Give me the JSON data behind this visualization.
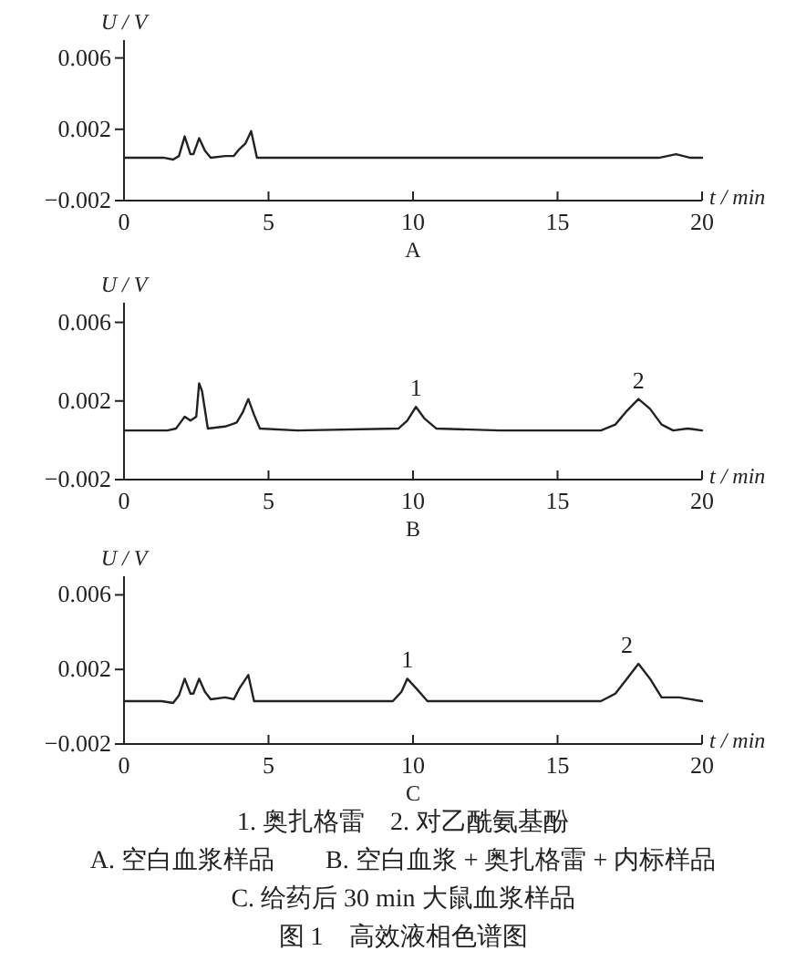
{
  "chart_data": [
    {
      "type": "line",
      "title": "A",
      "xlabel": "t / min",
      "ylabel": "U / V",
      "color": "#222222",
      "xlim": [
        0,
        20
      ],
      "ylim": [
        -0.002,
        0.007
      ],
      "xticks": [
        0,
        5,
        10,
        15,
        20
      ],
      "yticks": [
        -0.002,
        0.002,
        0.006
      ],
      "x": [
        0,
        1.4,
        1.7,
        1.9,
        2.1,
        2.3,
        2.4,
        2.6,
        2.8,
        3.0,
        3.5,
        3.8,
        4.0,
        4.2,
        4.4,
        4.6,
        5.0,
        6,
        10,
        12,
        15,
        18.5,
        19.1,
        19.6,
        20
      ],
      "values": [
        0.0004,
        0.0004,
        0.0003,
        0.0005,
        0.0016,
        0.0006,
        0.0006,
        0.0015,
        0.0008,
        0.0004,
        0.0005,
        0.0005,
        0.0009,
        0.0012,
        0.0019,
        0.0004,
        0.0004,
        0.0004,
        0.0004,
        0.0004,
        0.0004,
        0.0004,
        0.0006,
        0.0004,
        0.0004
      ]
    },
    {
      "type": "line",
      "title": "B",
      "xlabel": "t / min",
      "ylabel": "U / V",
      "color": "#222222",
      "xlim": [
        0,
        20
      ],
      "ylim": [
        -0.002,
        0.007
      ],
      "xticks": [
        0,
        5,
        10,
        15,
        20
      ],
      "yticks": [
        -0.002,
        0.002,
        0.006
      ],
      "x": [
        0,
        1.5,
        1.8,
        2.0,
        2.1,
        2.3,
        2.5,
        2.6,
        2.7,
        2.9,
        3.5,
        3.9,
        4.1,
        4.3,
        4.5,
        4.7,
        6,
        9.5,
        9.8,
        10.1,
        10.4,
        10.8,
        13,
        16.5,
        17.0,
        17.4,
        17.8,
        18.2,
        18.6,
        19,
        19.5,
        20
      ],
      "values": [
        0.0005,
        0.0005,
        0.0006,
        0.001,
        0.0012,
        0.001,
        0.0012,
        0.0029,
        0.0025,
        0.0006,
        0.0007,
        0.0009,
        0.0014,
        0.0021,
        0.0013,
        0.0006,
        0.0005,
        0.0006,
        0.001,
        0.0017,
        0.0011,
        0.0006,
        0.0005,
        0.0005,
        0.0008,
        0.0015,
        0.0021,
        0.0016,
        0.0008,
        0.0005,
        0.0006,
        0.0005
      ],
      "annotations": [
        {
          "text": "1",
          "x": 10.1,
          "y": 0.0017
        },
        {
          "text": "2",
          "x": 17.8,
          "y": 0.0021
        }
      ]
    },
    {
      "type": "line",
      "title": "C",
      "xlabel": "t / min",
      "ylabel": "U / V",
      "color": "#222222",
      "xlim": [
        0,
        20
      ],
      "ylim": [
        -0.002,
        0.007
      ],
      "xticks": [
        0,
        5,
        10,
        15,
        20
      ],
      "yticks": [
        -0.002,
        0.002,
        0.006
      ],
      "x": [
        0,
        1.3,
        1.7,
        1.9,
        2.1,
        2.3,
        2.4,
        2.6,
        2.8,
        3.0,
        3.5,
        3.8,
        4.0,
        4.3,
        4.5,
        5,
        9.3,
        9.6,
        9.8,
        10.1,
        10.5,
        12,
        16.5,
        17.0,
        17.4,
        17.8,
        18.2,
        18.6,
        19.2,
        19.6,
        20
      ],
      "values": [
        0.0003,
        0.0003,
        0.0002,
        0.0006,
        0.0015,
        0.0007,
        0.0007,
        0.0015,
        0.0008,
        0.0004,
        0.0005,
        0.0004,
        0.001,
        0.0017,
        0.0003,
        0.0003,
        0.0003,
        0.0008,
        0.0015,
        0.001,
        0.0003,
        0.0003,
        0.0003,
        0.0007,
        0.0015,
        0.0023,
        0.0015,
        0.0005,
        0.0005,
        0.0004,
        0.0003
      ],
      "annotations": [
        {
          "text": "1",
          "x": 9.8,
          "y": 0.0015
        },
        {
          "text": "2",
          "x": 17.4,
          "y": 0.0023
        },
        "1. 奥扎格雷　2. 对乙酰氨基酚",
        "A. 空白血浆样品　　B. 空白血浆 + 奥扎格雷 + 内标样品",
        "C. 给药后 30 min 大鼠血浆样品",
        "图 1　高效液相色谱图"
      ]
    }
  ]
}
